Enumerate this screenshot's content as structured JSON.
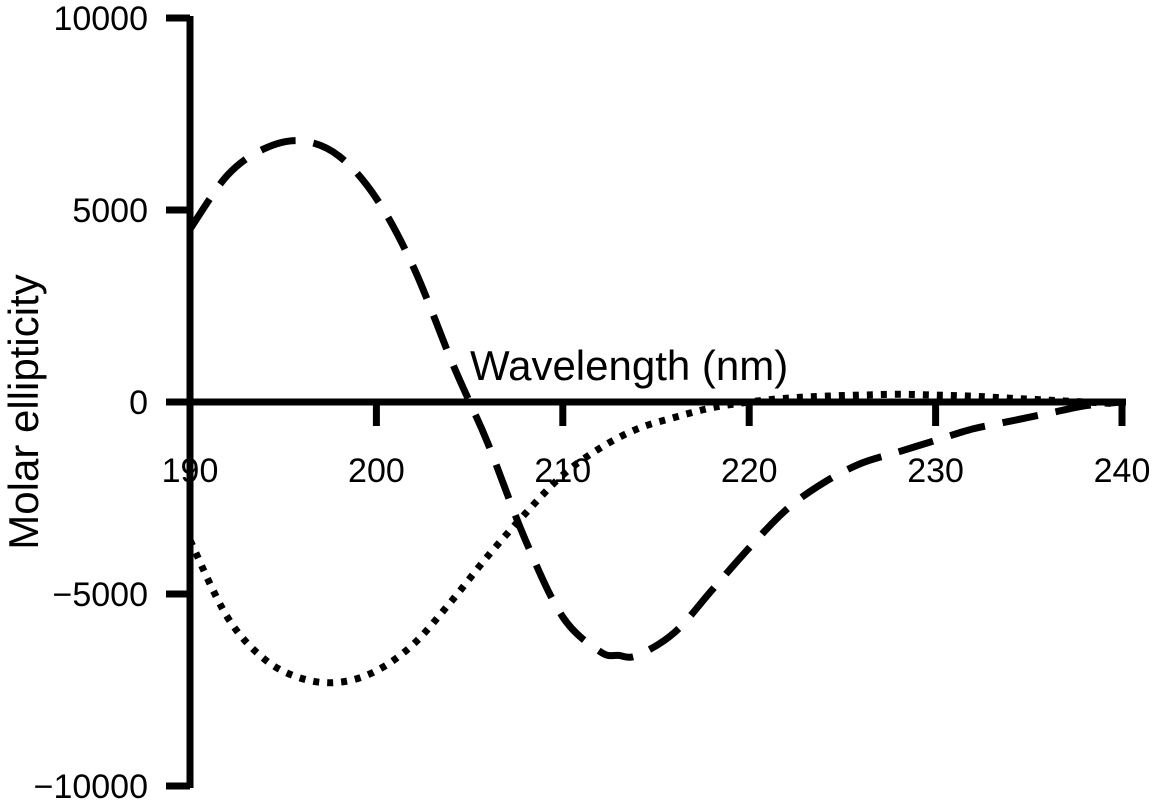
{
  "chart_data": {
    "type": "line",
    "title": "",
    "xlabel": "Wavelength (nm)",
    "ylabel": "Molar ellipticity",
    "xlim": [
      190,
      240
    ],
    "ylim": [
      -10000,
      10000
    ],
    "x_tick_labels": [
      "190",
      "200",
      "210",
      "220",
      "230",
      "240"
    ],
    "y_tick_labels": [
      "10000",
      "5000",
      "0",
      "−5000",
      "−10000"
    ],
    "grid": false,
    "legend": "none",
    "series": [
      {
        "style": "dashed",
        "color": "#000000",
        "x": [
          190,
          192,
          194,
          196,
          198,
          200,
          202,
          204,
          205,
          206,
          208,
          210,
          212,
          213,
          214,
          216,
          218,
          220,
          222,
          224,
          226,
          228,
          230,
          232,
          234,
          236,
          238,
          240
        ],
        "y": [
          4500,
          5900,
          6600,
          6800,
          6400,
          5300,
          3500,
          1100,
          0,
          -1100,
          -3600,
          -5600,
          -6500,
          -6600,
          -6600,
          -6000,
          -4900,
          -3800,
          -2800,
          -2100,
          -1600,
          -1300,
          -1000,
          -700,
          -500,
          -300,
          -100,
          0
        ]
      },
      {
        "style": "dotted",
        "color": "#000000",
        "x": [
          190,
          192,
          194,
          196,
          198,
          200,
          202,
          204,
          206,
          208,
          210,
          212,
          214,
          216,
          218,
          220,
          222,
          224,
          226,
          228,
          230,
          232,
          234,
          236,
          238,
          240
        ],
        "y": [
          -3600,
          -5600,
          -6700,
          -7200,
          -7300,
          -7000,
          -6300,
          -5200,
          -4000,
          -2900,
          -1900,
          -1200,
          -700,
          -400,
          -150,
          0,
          100,
          150,
          180,
          200,
          180,
          150,
          100,
          50,
          0,
          -50
        ]
      }
    ]
  }
}
